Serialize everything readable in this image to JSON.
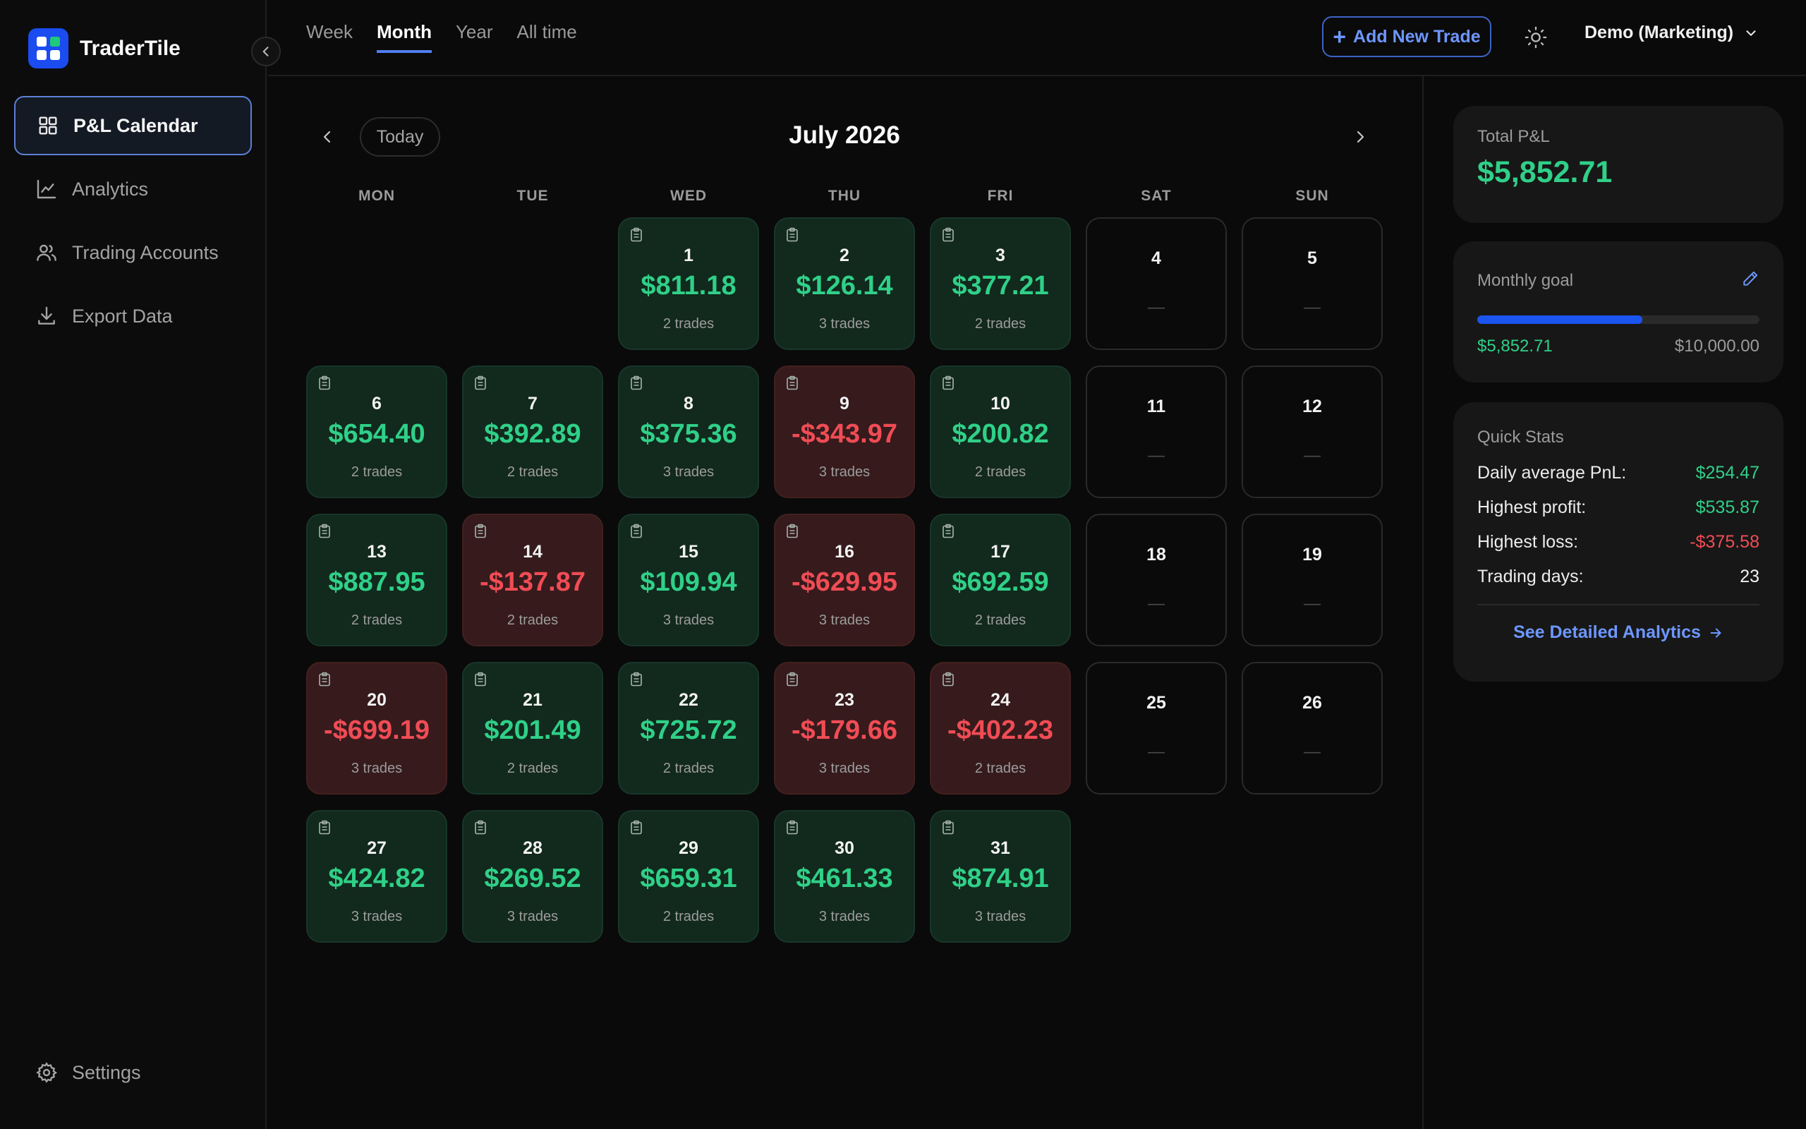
{
  "app": {
    "name": "TraderTile"
  },
  "sidebar": {
    "items": [
      {
        "label": "P&L Calendar",
        "icon": "grid-icon",
        "active": true
      },
      {
        "label": "Analytics",
        "icon": "chart-line-icon"
      },
      {
        "label": "Trading Accounts",
        "icon": "users-icon"
      },
      {
        "label": "Export Data",
        "icon": "download-icon"
      }
    ],
    "settings_label": "Settings"
  },
  "topbar": {
    "tabs": [
      "Week",
      "Month",
      "Year",
      "All time"
    ],
    "active_tab": "Month",
    "add_trade_label": "Add New Trade",
    "account_label": "Demo (Marketing)"
  },
  "calendar": {
    "today_label": "Today",
    "month_title": "July 2026",
    "weekdays": [
      "MON",
      "TUE",
      "WED",
      "THU",
      "FRI",
      "SAT",
      "SUN"
    ],
    "leading_blanks": 2,
    "days": [
      {
        "day": "1",
        "pnl": "$811.18",
        "trades": "2 trades",
        "status": "win"
      },
      {
        "day": "2",
        "pnl": "$126.14",
        "trades": "3 trades",
        "status": "win"
      },
      {
        "day": "3",
        "pnl": "$377.21",
        "trades": "2 trades",
        "status": "win"
      },
      {
        "day": "4",
        "status": "none"
      },
      {
        "day": "5",
        "status": "none"
      },
      {
        "day": "6",
        "pnl": "$654.40",
        "trades": "2 trades",
        "status": "win"
      },
      {
        "day": "7",
        "pnl": "$392.89",
        "trades": "2 trades",
        "status": "win"
      },
      {
        "day": "8",
        "pnl": "$375.36",
        "trades": "3 trades",
        "status": "win"
      },
      {
        "day": "9",
        "pnl": "-$343.97",
        "trades": "3 trades",
        "status": "loss"
      },
      {
        "day": "10",
        "pnl": "$200.82",
        "trades": "2 trades",
        "status": "win"
      },
      {
        "day": "11",
        "status": "none"
      },
      {
        "day": "12",
        "status": "none"
      },
      {
        "day": "13",
        "pnl": "$887.95",
        "trades": "2 trades",
        "status": "win"
      },
      {
        "day": "14",
        "pnl": "-$137.87",
        "trades": "2 trades",
        "status": "loss"
      },
      {
        "day": "15",
        "pnl": "$109.94",
        "trades": "3 trades",
        "status": "win"
      },
      {
        "day": "16",
        "pnl": "-$629.95",
        "trades": "3 trades",
        "status": "loss"
      },
      {
        "day": "17",
        "pnl": "$692.59",
        "trades": "2 trades",
        "status": "win"
      },
      {
        "day": "18",
        "status": "none"
      },
      {
        "day": "19",
        "status": "none"
      },
      {
        "day": "20",
        "pnl": "-$699.19",
        "trades": "3 trades",
        "status": "loss"
      },
      {
        "day": "21",
        "pnl": "$201.49",
        "trades": "2 trades",
        "status": "win"
      },
      {
        "day": "22",
        "pnl": "$725.72",
        "trades": "2 trades",
        "status": "win"
      },
      {
        "day": "23",
        "pnl": "-$179.66",
        "trades": "3 trades",
        "status": "loss"
      },
      {
        "day": "24",
        "pnl": "-$402.23",
        "trades": "2 trades",
        "status": "loss"
      },
      {
        "day": "25",
        "status": "none"
      },
      {
        "day": "26",
        "status": "none"
      },
      {
        "day": "27",
        "pnl": "$424.82",
        "trades": "3 trades",
        "status": "win"
      },
      {
        "day": "28",
        "pnl": "$269.52",
        "trades": "3 trades",
        "status": "win"
      },
      {
        "day": "29",
        "pnl": "$659.31",
        "trades": "2 trades",
        "status": "win"
      },
      {
        "day": "30",
        "pnl": "$461.33",
        "trades": "3 trades",
        "status": "win"
      },
      {
        "day": "31",
        "pnl": "$874.91",
        "trades": "3 trades",
        "status": "win"
      }
    ],
    "empty_marker": "—"
  },
  "summary": {
    "total_label": "Total P&L",
    "total_value": "$5,852.71",
    "goal_label": "Monthly goal",
    "goal_current": "$5,852.71",
    "goal_target": "$10,000.00",
    "goal_progress_fraction": 0.585,
    "quick_stats_label": "Quick Stats",
    "stats": [
      {
        "label": "Daily average PnL:",
        "value": "$254.47",
        "tone": "pos"
      },
      {
        "label": "Highest profit:",
        "value": "$535.87",
        "tone": "pos"
      },
      {
        "label": "Highest loss:",
        "value": "-$375.58",
        "tone": "neg"
      },
      {
        "label": "Trading days:",
        "value": "23",
        "tone": "neu"
      }
    ],
    "detail_link_label": "See Detailed Analytics"
  },
  "colors": {
    "accent": "#4f7ff0",
    "profit": "#2fd088",
    "loss": "#f04c55",
    "background": "#0a0a0a"
  }
}
